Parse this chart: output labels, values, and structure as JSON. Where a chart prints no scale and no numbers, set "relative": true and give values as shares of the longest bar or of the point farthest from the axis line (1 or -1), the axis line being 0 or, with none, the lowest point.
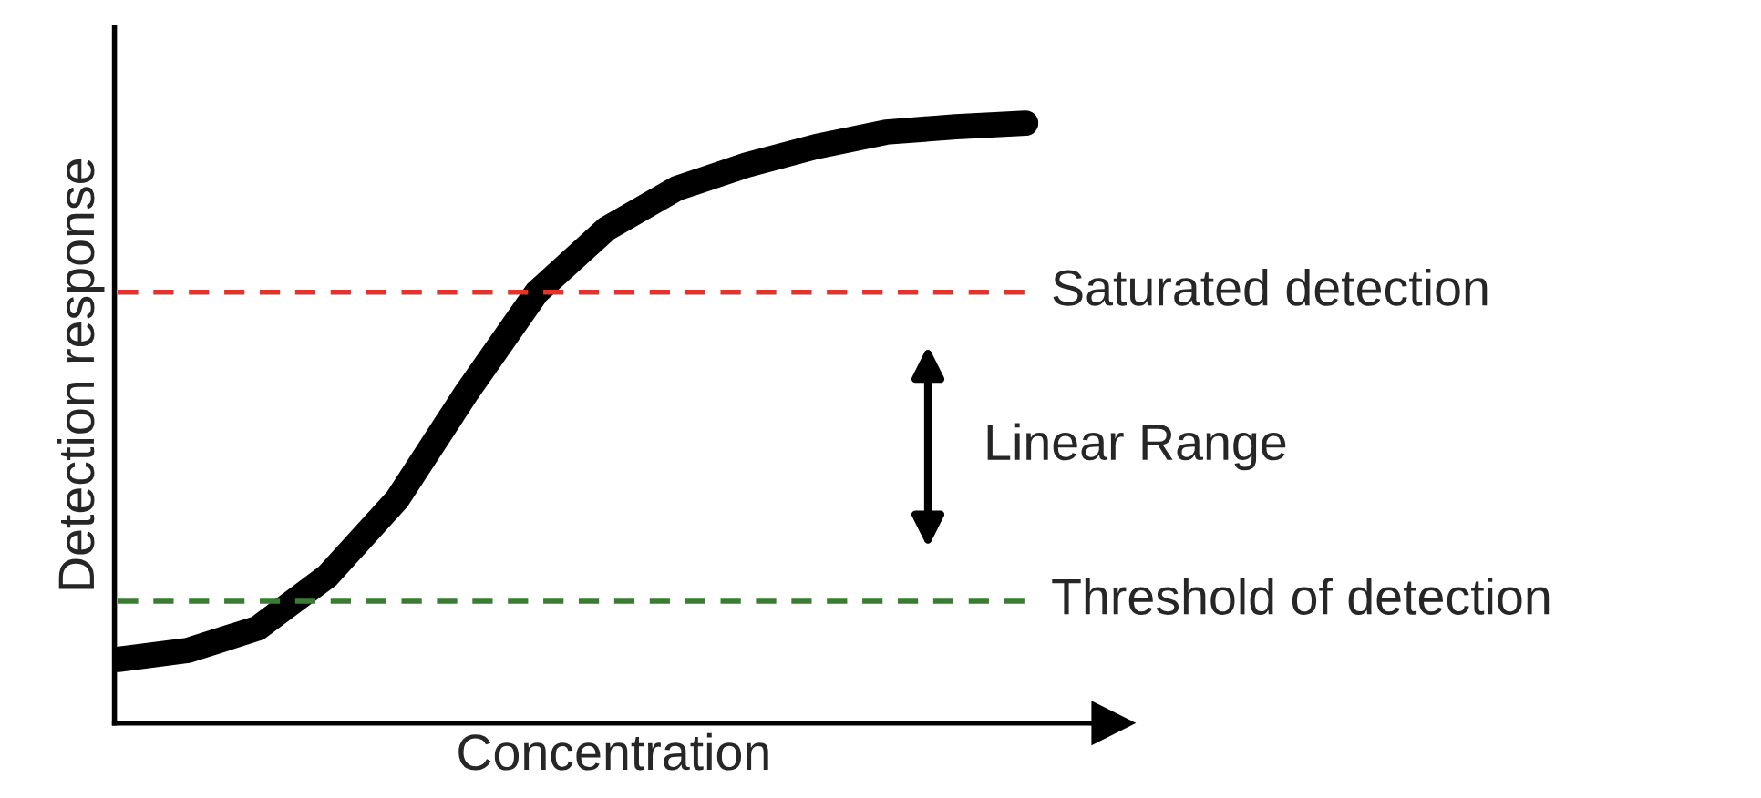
{
  "chart_data": {
    "type": "line",
    "relative": true,
    "xlabel": "Concentration",
    "ylabel": "Detection response",
    "categories": [
      null,
      null,
      null,
      null,
      null,
      null,
      null,
      null,
      null,
      null,
      null,
      null,
      null,
      null
    ],
    "series": [
      {
        "color": "#000000",
        "values": [
          0.106,
          0.121,
          0.158,
          0.245,
          0.373,
          0.552,
          0.718,
          0.824,
          0.891,
          0.93,
          0.961,
          0.985,
          0.994,
          1.0
        ]
      }
    ],
    "ref_lines": [
      {
        "axis": "y",
        "value": 0.718,
        "label": "Saturated detection",
        "color": "#e8312a",
        "line_style": "dashed"
      },
      {
        "axis": "y",
        "value": 0.203,
        "label": "Threshold of detection",
        "color": "#3a7d32",
        "line_style": "dashed"
      }
    ],
    "annotations": [
      "Linear Range"
    ],
    "marker": "none",
    "line_style": "solid"
  }
}
